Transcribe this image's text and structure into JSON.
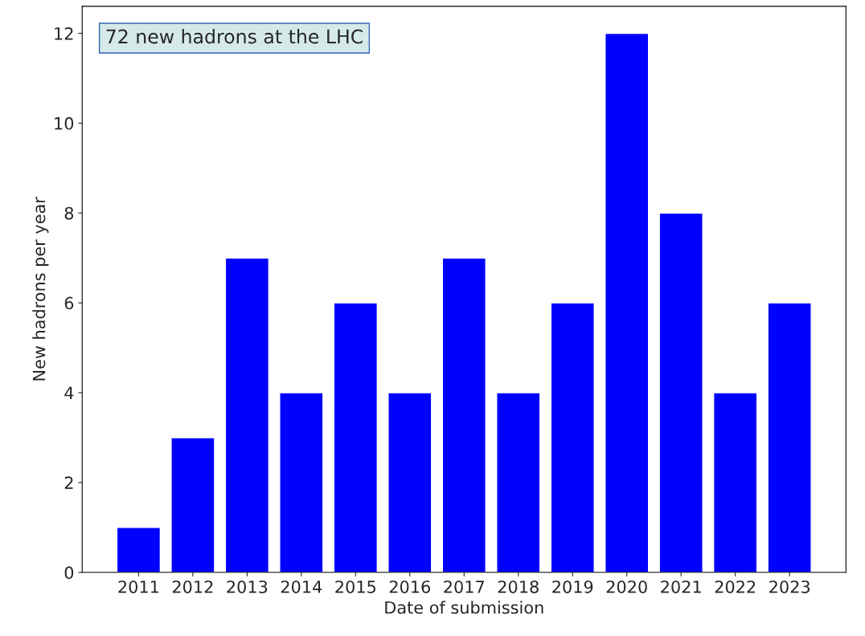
{
  "chart_data": {
    "type": "bar",
    "xlabel": "Date of submission",
    "ylabel": "New hadrons per year",
    "categories": [
      "2011",
      "2012",
      "2013",
      "2014",
      "2015",
      "2016",
      "2017",
      "2018",
      "2019",
      "2020",
      "2021",
      "2022",
      "2023"
    ],
    "values": [
      1,
      3,
      7,
      4,
      6,
      4,
      7,
      4,
      6,
      12,
      8,
      4,
      6
    ],
    "color": "#0000ff",
    "ylim": [
      0,
      12.6
    ],
    "yticks": [
      0,
      2,
      4,
      6,
      8,
      10,
      12
    ],
    "grid": false,
    "annotations": [
      "72 new hadrons at the LHC"
    ]
  }
}
